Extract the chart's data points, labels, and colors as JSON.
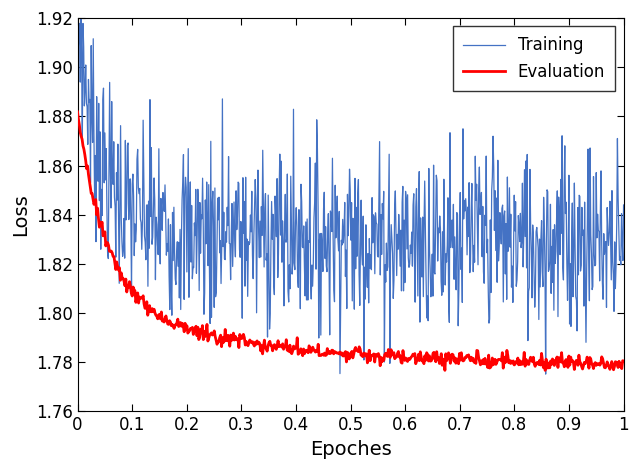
{
  "title": "",
  "xlabel": "Epoches",
  "ylabel": "Loss",
  "xlim": [
    0,
    1.0
  ],
  "ylim": [
    1.76,
    1.92
  ],
  "yticks": [
    1.76,
    1.78,
    1.8,
    1.82,
    1.84,
    1.86,
    1.88,
    1.9,
    1.92
  ],
  "xticks": [
    0.0,
    0.1,
    0.2,
    0.3,
    0.4,
    0.5,
    0.6,
    0.7,
    0.8,
    0.9,
    1.0
  ],
  "training_color": "#4472C4",
  "eval_color": "#FF0000",
  "training_label": "Training",
  "eval_label": "Evaluation",
  "training_linewidth": 0.9,
  "eval_linewidth": 2.0,
  "legend_fontsize": 12,
  "axis_label_fontsize": 14,
  "tick_fontsize": 12,
  "seed": 7,
  "n_training_points": 800,
  "n_eval_points": 600,
  "background_color": "#ffffff"
}
